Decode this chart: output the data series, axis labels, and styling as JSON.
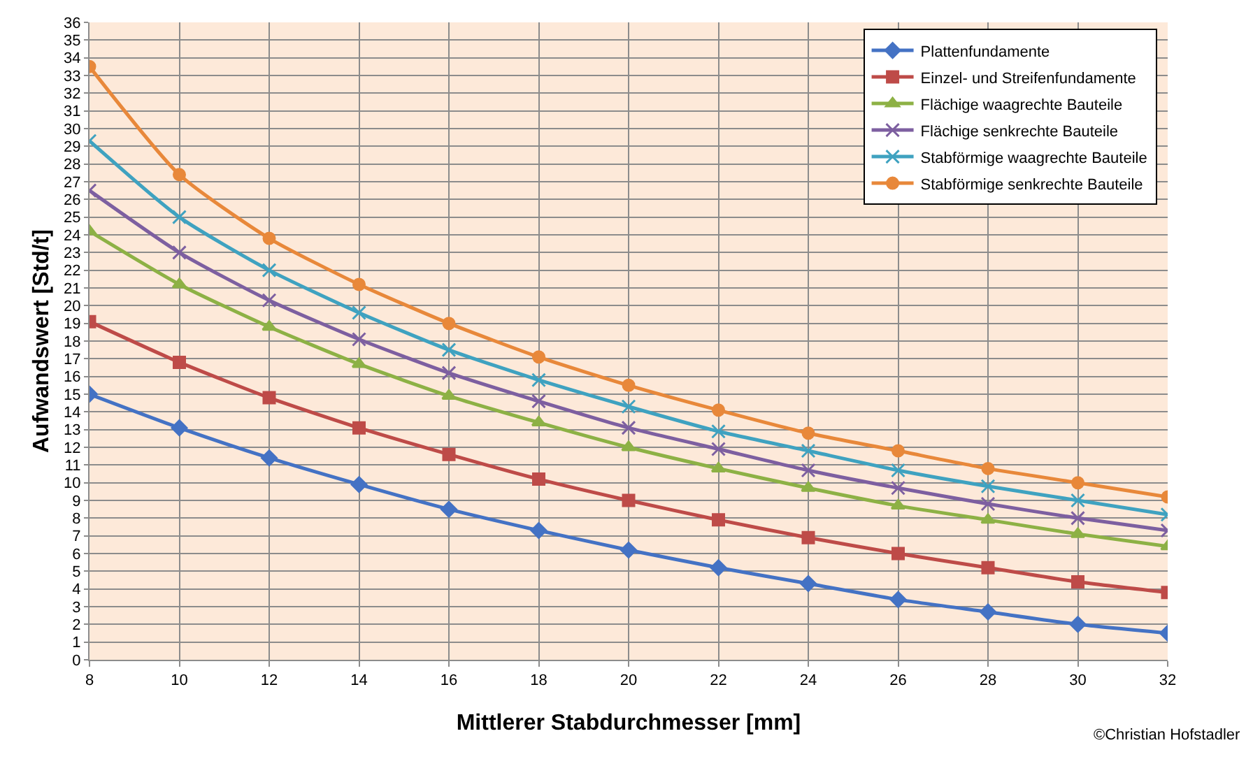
{
  "chart_data": {
    "type": "line",
    "xlabel": "Mittlerer Stabdurchmesser [mm]",
    "ylabel": "Aufwandswert [Std/t]",
    "x": [
      8,
      10,
      12,
      14,
      16,
      18,
      20,
      22,
      24,
      26,
      28,
      30,
      32
    ],
    "xlim": [
      8,
      32
    ],
    "xticks": [
      8,
      10,
      12,
      14,
      16,
      18,
      20,
      22,
      24,
      26,
      28,
      30,
      32
    ],
    "ylim": [
      0,
      36
    ],
    "yticks": [
      0,
      1,
      2,
      3,
      4,
      5,
      6,
      7,
      8,
      9,
      10,
      11,
      12,
      13,
      14,
      15,
      16,
      17,
      18,
      19,
      20,
      21,
      22,
      23,
      24,
      25,
      26,
      27,
      28,
      29,
      30,
      31,
      32,
      33,
      34,
      35,
      36
    ],
    "grid": true,
    "legend": "top right",
    "series": [
      {
        "name": "Plattenfundamente",
        "color": "#4472c4",
        "marker": "diamond",
        "values": [
          15,
          13.1,
          11.4,
          9.9,
          8.5,
          7.3,
          6.2,
          5.2,
          4.3,
          3.4,
          2.7,
          2.0,
          1.5
        ]
      },
      {
        "name": "Einzel- und Streifenfundamente",
        "color": "#be4b48",
        "marker": "square",
        "values": [
          19.1,
          16.8,
          14.8,
          13.1,
          11.6,
          10.2,
          9.0,
          7.9,
          6.9,
          6.0,
          5.2,
          4.4,
          3.8
        ]
      },
      {
        "name": "Flächige waagrechte Bauteile",
        "color": "#8db145",
        "marker": "triangle",
        "values": [
          24.2,
          21.2,
          18.8,
          16.7,
          14.9,
          13.4,
          12.0,
          10.8,
          9.7,
          8.7,
          7.9,
          7.1,
          6.4
        ]
      },
      {
        "name": "Flächige senkrechte Bauteile",
        "color": "#7d5fa0",
        "marker": "cross",
        "values": [
          26.5,
          23.0,
          20.3,
          18.1,
          16.2,
          14.6,
          13.1,
          11.9,
          10.7,
          9.7,
          8.8,
          8.0,
          7.3
        ]
      },
      {
        "name": "Stabförmige waagrechte Bauteile",
        "color": "#3fa2c0",
        "marker": "cross",
        "values": [
          29.3,
          25.0,
          22.0,
          19.6,
          17.5,
          15.8,
          14.3,
          12.9,
          11.8,
          10.7,
          9.8,
          9.0,
          8.2
        ]
      },
      {
        "name": "Stabförmige senkrechte Bauteile",
        "color": "#e8883a",
        "marker": "circle",
        "values": [
          33.5,
          27.4,
          23.8,
          21.2,
          19.0,
          17.1,
          15.5,
          14.1,
          12.8,
          11.8,
          10.8,
          10.0,
          9.2
        ]
      }
    ],
    "annotations": [
      "©Christian Hofstadler"
    ]
  }
}
